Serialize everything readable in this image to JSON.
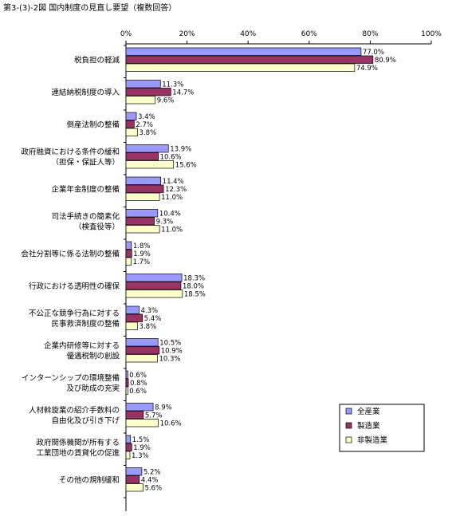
{
  "chart_data": {
    "type": "bar",
    "orientation": "horizontal",
    "title": "第3-(3)-2図 国内制度の見直し要望（複数回答）",
    "xlim": [
      0,
      100
    ],
    "xticks": [
      "0%",
      "20%",
      "40%",
      "60%",
      "80%",
      "100%"
    ],
    "grid": false,
    "legend_position": "right",
    "categories": [
      [
        "税負担の軽減"
      ],
      [
        "連結納税制度の導入"
      ],
      [
        "倒産法制の整備"
      ],
      [
        "政府融資における条件の緩和",
        "（担保・保証人等）"
      ],
      [
        "企業年金制度の整備"
      ],
      [
        "司法手続きの簡素化",
        "（検査役等）"
      ],
      [
        "会社分割等に係る法制の整備"
      ],
      [
        "行政における透明性の確保"
      ],
      [
        "不公正な競争行為に対する",
        "民事救済制度の整備"
      ],
      [
        "企業内研修等に対する",
        "優遇税制の創設"
      ],
      [
        "インターンシップの環境整備",
        "及び助成の充実"
      ],
      [
        "人材斡旋業の紹介手数料の",
        "自由化及び引き下げ"
      ],
      [
        "政府関係機関が所有する",
        "工業団地の賃貸化の促進"
      ],
      [
        "その他の規制緩和"
      ]
    ],
    "series": [
      {
        "name": "全産業",
        "color": "#9999ff",
        "values": [
          77.0,
          11.3,
          3.4,
          13.9,
          11.4,
          10.4,
          1.8,
          18.3,
          4.3,
          10.5,
          0.6,
          8.9,
          1.5,
          5.2
        ],
        "labels": [
          "77.0%",
          "11.3%",
          "3.4%",
          "13.9%",
          "11.4%",
          "10.4%",
          "1.8%",
          "18.3%",
          "4.3%",
          "10.5%",
          "0.6%",
          "8.9%",
          "1.5%",
          "5.2%"
        ]
      },
      {
        "name": "製造業",
        "color": "#993366",
        "values": [
          80.9,
          14.7,
          2.7,
          10.6,
          12.3,
          9.3,
          1.9,
          18.0,
          5.4,
          10.9,
          0.8,
          5.7,
          1.9,
          4.4
        ],
        "labels": [
          "80.9%",
          "14.7%",
          "2.7%",
          "10.6%",
          "12.3%",
          "9.3%",
          "1.9%",
          "18.0%",
          "5.4%",
          "10.9%",
          "0.8%",
          "5.7%",
          "1.9%",
          "4.4%"
        ]
      },
      {
        "name": "非製造業",
        "color": "#ffffcc",
        "values": [
          74.9,
          9.6,
          3.8,
          15.6,
          11.0,
          11.0,
          1.7,
          18.5,
          3.8,
          10.3,
          0.6,
          10.6,
          1.3,
          5.6
        ],
        "labels": [
          "74.9%",
          "9.6%",
          "3.8%",
          "15.6%",
          "11.0%",
          "11.0%",
          "1.7%",
          "18.5%",
          "3.8%",
          "10.3%",
          "0.6%",
          "10.6%",
          "1.3%",
          "5.6%"
        ]
      }
    ]
  }
}
